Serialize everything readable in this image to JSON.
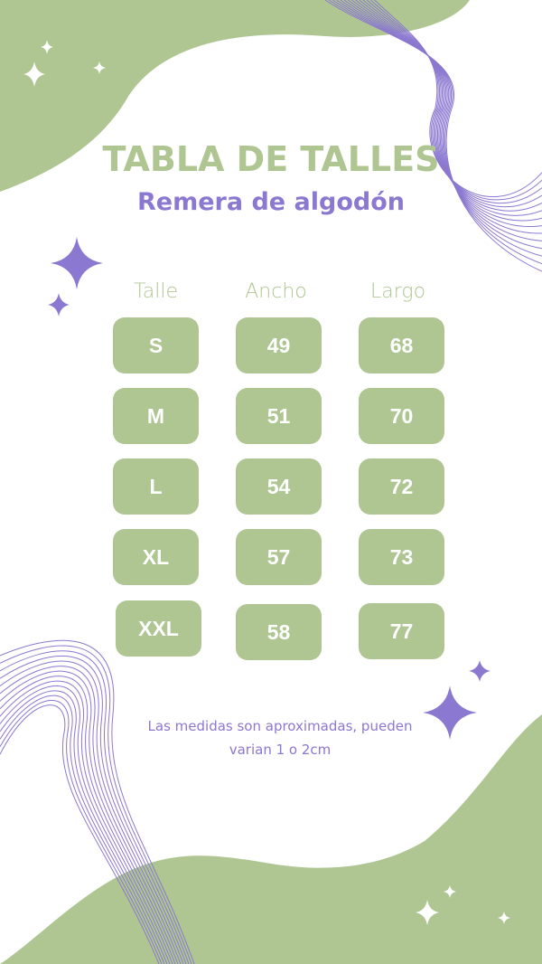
{
  "title": "TABLA DE TALLES",
  "subtitle": "Remera de algodón",
  "table": {
    "headers": [
      "Talle",
      "Ancho",
      "Largo"
    ],
    "rows": [
      [
        "S",
        "49",
        "68"
      ],
      [
        "M",
        "51",
        "70"
      ],
      [
        "L",
        "54",
        "72"
      ],
      [
        "XL",
        "57",
        "73"
      ],
      [
        "XXL",
        "58",
        "77"
      ]
    ]
  },
  "note": "Las medidas son aproximadas, pueden varian 1 o 2cm",
  "colors": {
    "green": "#afc692",
    "purple": "#8b78d0",
    "background": "#ffffff"
  },
  "icons": [
    "sparkle-icon",
    "four-point-star-icon"
  ]
}
